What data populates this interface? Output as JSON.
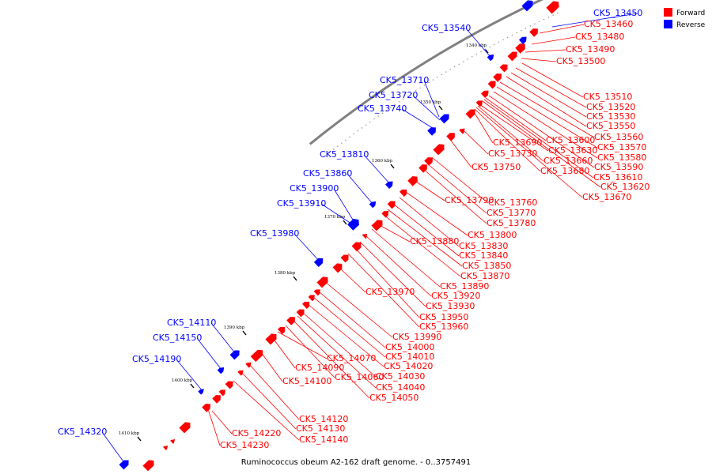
{
  "caption": "Ruminococcus obeum A2-162 draft genome. - 0..3757491",
  "legend": [
    {
      "label": "Forward",
      "color": "#ff0000"
    },
    {
      "label": "Reverse",
      "color": "#0000ff"
    }
  ],
  "colors": {
    "forward": "#ff0000",
    "reverse": "#0000ff",
    "backbone": "#808080"
  },
  "ticks": [
    "1340 kbp",
    "1350 kbp",
    "1360 kbp",
    "1370 kbp",
    "1380 kbp",
    "1390 kbp",
    "1400 kbp",
    "1410 kbp"
  ],
  "reverse_genes": [
    "CK5_13450",
    "CK5_13540",
    "CK5_13710",
    "CK5_13720",
    "CK5_13740",
    "CK5_13810",
    "CK5_13860",
    "CK5_13900",
    "CK5_13910",
    "CK5_13980",
    "CK5_14110",
    "CK5_14150",
    "CK5_14190",
    "CK5_14320"
  ],
  "forward_genes": [
    "CK5_13460",
    "CK5_13480",
    "CK5_13490",
    "CK5_13500",
    "CK5_13510",
    "CK5_13520",
    "CK5_13530",
    "CK5_13550",
    "CK5_13560",
    "CK5_13570",
    "CK5_13580",
    "CK5_13590",
    "CK5_13600",
    "CK5_13610",
    "CK5_13620",
    "CK5_13630",
    "CK5_13660",
    "CK5_13670",
    "CK5_13680",
    "CK5_13690",
    "CK5_13730",
    "CK5_13750",
    "CK5_13760",
    "CK5_13770",
    "CK5_13780",
    "CK5_13790",
    "CK5_13800",
    "CK5_13830",
    "CK5_13840",
    "CK5_13850",
    "CK5_13870",
    "CK5_13880",
    "CK5_13890",
    "CK5_13920",
    "CK5_13930",
    "CK5_13950",
    "CK5_13960",
    "CK5_13970",
    "CK5_13990",
    "CK5_14000",
    "CK5_14010",
    "CK5_14020",
    "CK5_14030",
    "CK5_14040",
    "CK5_14050",
    "CK5_14060",
    "CK5_14070",
    "CK5_14090",
    "CK5_14100",
    "CK5_14120",
    "CK5_14130",
    "CK5_14140",
    "CK5_14220",
    "CK5_14230"
  ]
}
